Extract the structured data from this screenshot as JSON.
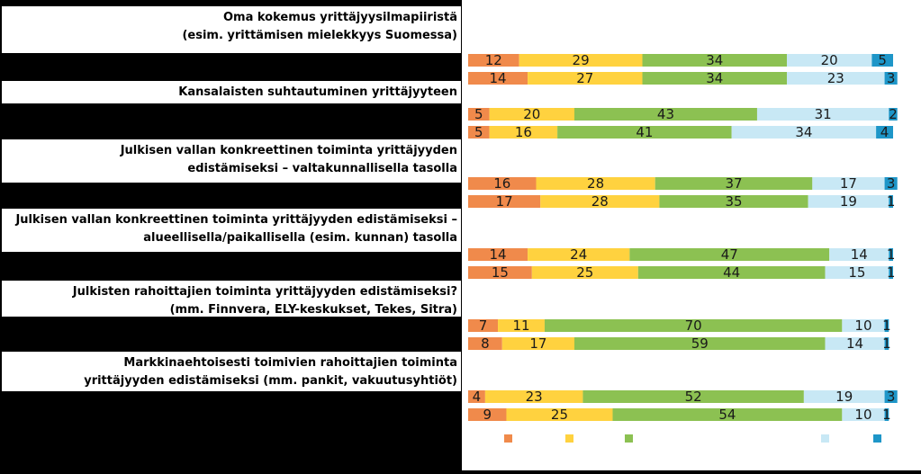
{
  "chart_data": {
    "type": "bar",
    "stacked": true,
    "orientation": "horizontal",
    "percent": true,
    "categories": [
      {
        "lines": [
          "Oma kokemus yrittäjyysilmapiiristä",
          "(esim. yrittämisen mielekkyys Suomessa)"
        ]
      },
      {
        "lines": [
          "Kansalaisten suhtautuminen yrittäjyyteen"
        ]
      },
      {
        "lines": [
          "Julkisen vallan konkreettinen toiminta yrittäjyyden",
          "edistämiseksi – valtakunnallisella tasolla"
        ]
      },
      {
        "lines": [
          "Julkisen vallan konkreettinen toiminta yrittäjyyden edistämiseksi –",
          "alueellisella/paikallisella (esim. kunnan) tasolla"
        ]
      },
      {
        "lines": [
          "Julkisten rahoittajien toiminta yrittäjyyden edistämiseksi?",
          "(mm. Finnvera, ELY-keskukset, Tekes, Sitra)"
        ]
      },
      {
        "lines": [
          "Markkinaehtoisesti toimivien rahoittajien toiminta",
          "yrittäjyyden edistämiseksi (mm. pankit, vakuutusyhtiöt)"
        ]
      }
    ],
    "series_colors": [
      "#f08a4b",
      "#ffd23f",
      "#8cc152",
      "#ffffff",
      "#c8e8f5",
      "#1e96c8"
    ],
    "groups": [
      {
        "bars": [
          [
            12,
            29,
            34,
            0,
            20,
            5
          ],
          [
            14,
            27,
            34,
            0,
            23,
            3
          ]
        ]
      },
      {
        "bars": [
          [
            5,
            20,
            43,
            0,
            31,
            2
          ],
          [
            5,
            16,
            41,
            0,
            34,
            4
          ]
        ]
      },
      {
        "bars": [
          [
            16,
            28,
            37,
            0,
            17,
            3
          ],
          [
            17,
            28,
            35,
            0,
            19,
            1
          ]
        ]
      },
      {
        "bars": [
          [
            14,
            24,
            47,
            0,
            14,
            1
          ],
          [
            15,
            25,
            44,
            0,
            15,
            1
          ]
        ]
      },
      {
        "bars": [
          [
            7,
            11,
            70,
            0,
            10,
            1
          ],
          [
            8,
            17,
            59,
            0,
            14,
            1
          ]
        ]
      },
      {
        "bars": [
          [
            4,
            23,
            52,
            0,
            19,
            3
          ],
          [
            9,
            25,
            54,
            0,
            10,
            1
          ]
        ]
      }
    ],
    "legend": {
      "position": "bottom",
      "entries": [
        "",
        "",
        "",
        "",
        ""
      ]
    }
  }
}
